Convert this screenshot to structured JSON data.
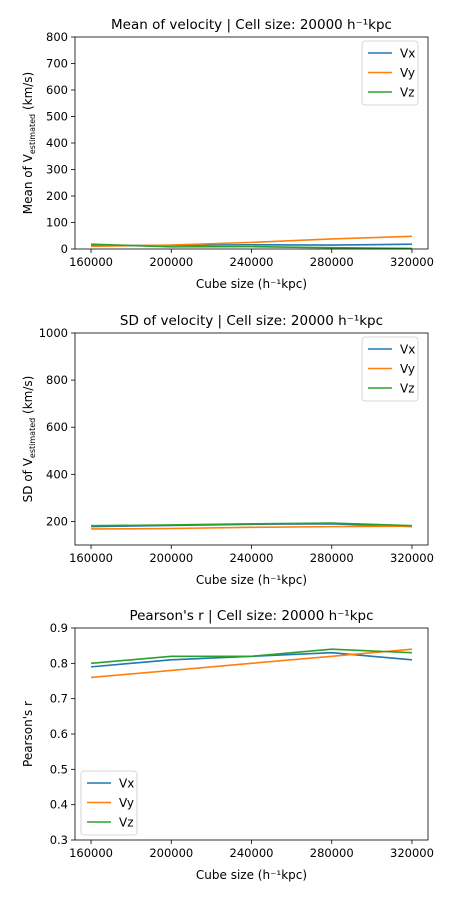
{
  "colors": {
    "Vx": "#1f77b4",
    "Vy": "#ff7f0e",
    "Vz": "#2ca02c"
  },
  "chart_data": [
    {
      "type": "line",
      "title": "Mean of velocity | Cell size: 20000 h⁻¹kpc",
      "xlabel": "Cube size (h⁻¹kpc)",
      "ylabel": "Mean of V_estimated (km/s)",
      "ylabel_main": "Mean of V",
      "ylabel_sub": "estimated",
      "ylabel_tail": " (km/s)",
      "x": [
        160000,
        200000,
        240000,
        280000,
        320000
      ],
      "xlim": [
        152000,
        328000
      ],
      "xticks": [
        160000,
        200000,
        240000,
        280000,
        320000
      ],
      "ylim": [
        0,
        800
      ],
      "yticks": [
        0,
        100,
        200,
        300,
        400,
        500,
        600,
        700,
        800
      ],
      "legend": "top-right",
      "grid": false,
      "series": [
        {
          "name": "Vx",
          "values": [
            12,
            14,
            16,
            15,
            18
          ]
        },
        {
          "name": "Vy",
          "values": [
            10,
            15,
            25,
            38,
            48
          ]
        },
        {
          "name": "Vz",
          "values": [
            18,
            8,
            9,
            5,
            2
          ]
        }
      ]
    },
    {
      "type": "line",
      "title": "SD of velocity | Cell size: 20000 h⁻¹kpc",
      "xlabel": "Cube size (h⁻¹kpc)",
      "ylabel": "SD of V_estimated (km/s)",
      "ylabel_main": "SD of V",
      "ylabel_sub": "estimated",
      "ylabel_tail": " (km/s)",
      "x": [
        160000,
        200000,
        240000,
        280000,
        320000
      ],
      "xlim": [
        152000,
        328000
      ],
      "xticks": [
        160000,
        200000,
        240000,
        280000,
        320000
      ],
      "ylim": [
        100,
        1000
      ],
      "yticks": [
        200,
        400,
        600,
        800,
        1000
      ],
      "legend": "top-right",
      "grid": false,
      "series": [
        {
          "name": "Vx",
          "values": [
            178,
            183,
            188,
            190,
            178
          ]
        },
        {
          "name": "Vy",
          "values": [
            168,
            170,
            175,
            178,
            180
          ]
        },
        {
          "name": "Vz",
          "values": [
            182,
            185,
            190,
            193,
            182
          ]
        }
      ]
    },
    {
      "type": "line",
      "title": "Pearson's r | Cell size: 20000 h⁻¹kpc",
      "xlabel": "Cube size (h⁻¹kpc)",
      "ylabel": "Pearson's r",
      "ylabel_main": "Pearson's r",
      "ylabel_sub": "",
      "ylabel_tail": "",
      "x": [
        160000,
        200000,
        240000,
        280000,
        320000
      ],
      "xlim": [
        152000,
        328000
      ],
      "xticks": [
        160000,
        200000,
        240000,
        280000,
        320000
      ],
      "ylim": [
        0.3,
        0.9
      ],
      "yticks": [
        0.3,
        0.4,
        0.5,
        0.6,
        0.7,
        0.8,
        0.9
      ],
      "legend": "bottom-left",
      "grid": false,
      "series": [
        {
          "name": "Vx",
          "values": [
            0.79,
            0.81,
            0.82,
            0.83,
            0.81
          ]
        },
        {
          "name": "Vy",
          "values": [
            0.76,
            0.78,
            0.8,
            0.82,
            0.84
          ]
        },
        {
          "name": "Vz",
          "values": [
            0.8,
            0.82,
            0.82,
            0.84,
            0.83
          ]
        }
      ]
    }
  ]
}
